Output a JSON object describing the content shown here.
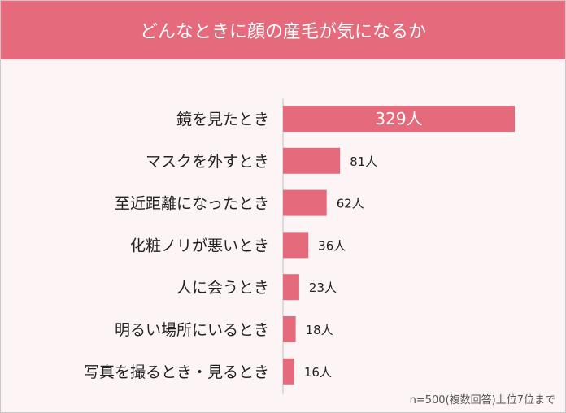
{
  "chart_data": {
    "type": "bar",
    "orientation": "horizontal",
    "title": "どんなときに顔の産毛が気になるか",
    "categories": [
      "鏡を見たとき",
      "マスクを外すとき",
      "至近距離になったとき",
      "化粧ノリが悪いとき",
      "人に会うとき",
      "明るい場所にいるとき",
      "写真を撮るとき・見るとき"
    ],
    "values": [
      329,
      81,
      62,
      36,
      23,
      18,
      16
    ],
    "unit": "人",
    "note": "n=500(複数回答)上位7位まで",
    "xlabel": "",
    "ylabel": "",
    "grid": false,
    "bar_color": "#e56a7c"
  }
}
